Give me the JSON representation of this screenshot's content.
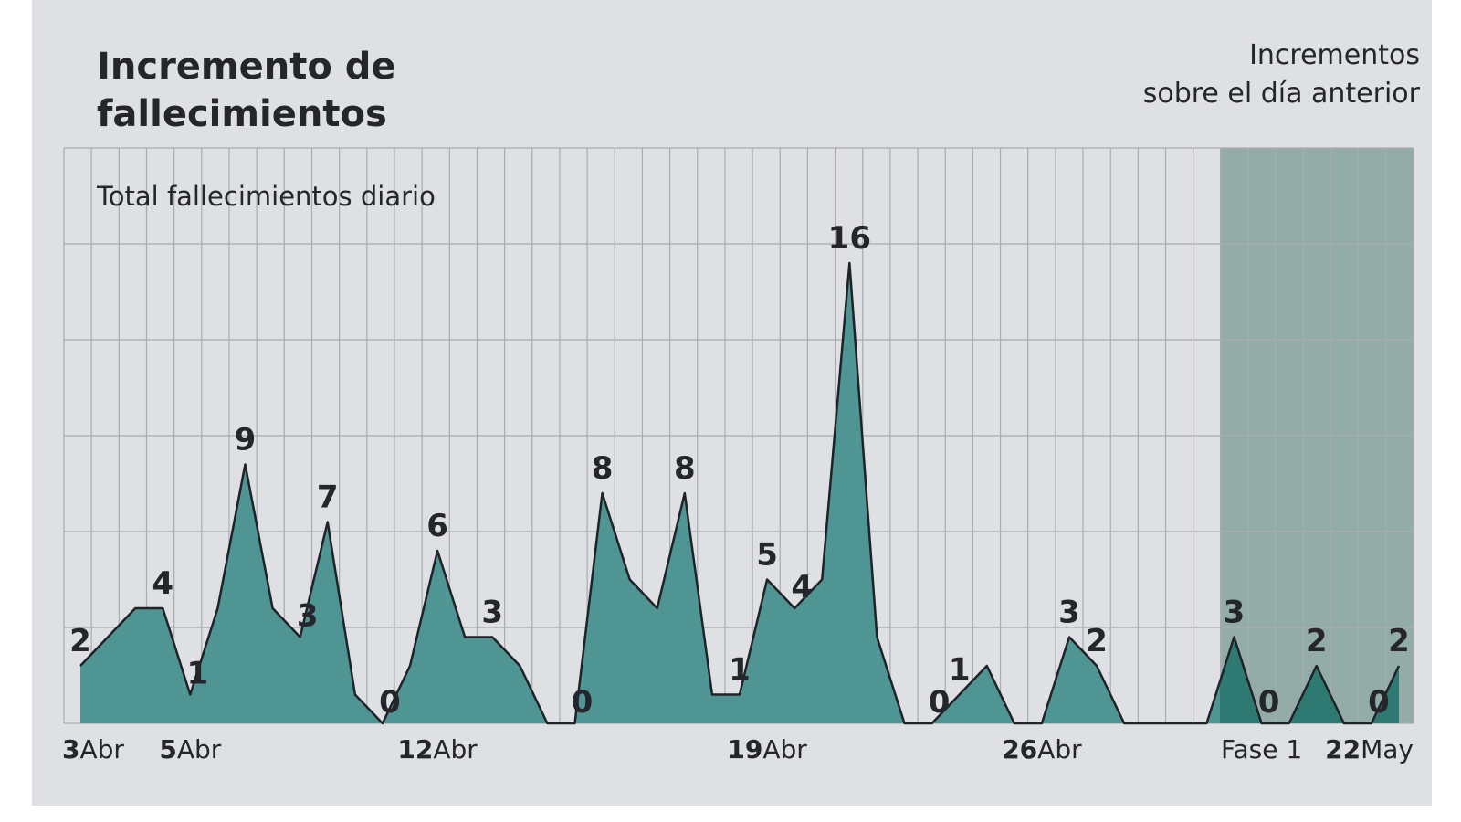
{
  "chart_data": {
    "type": "area",
    "title_lines": [
      "Incremento de",
      "fallecimientos"
    ],
    "note_lines": [
      "Incrementos",
      "sobre el día anterior"
    ],
    "subtitle": "Total fallecimientos diario",
    "categories": [
      "3Abr",
      null,
      null,
      null,
      "5Abr",
      null,
      null,
      null,
      null,
      null,
      null,
      null,
      null,
      "12Abr",
      null,
      null,
      null,
      null,
      null,
      null,
      null,
      null,
      null,
      null,
      null,
      "19Abr",
      null,
      null,
      null,
      null,
      null,
      null,
      null,
      null,
      null,
      "26Abr",
      null,
      null,
      null,
      null,
      null,
      null,
      null,
      "Fase 1",
      null,
      null,
      null,
      null,
      "22May"
    ],
    "values": [
      2,
      3,
      4,
      4,
      1,
      4,
      9,
      4,
      3,
      7,
      1,
      0,
      2,
      6,
      3,
      3,
      2,
      0,
      0,
      8,
      5,
      4,
      8,
      1,
      1,
      5,
      4,
      5,
      16,
      3,
      0,
      0,
      1,
      2,
      0,
      0,
      3,
      2,
      0,
      0,
      0,
      0,
      3,
      0,
      0,
      2,
      0,
      0,
      2
    ],
    "value_labels": [
      "2",
      null,
      null,
      "4",
      "1",
      null,
      "9",
      null,
      "3",
      "7",
      null,
      "0",
      null,
      "6",
      null,
      "3",
      null,
      null,
      "0",
      "8",
      null,
      null,
      "8",
      null,
      "1",
      "5",
      "4",
      null,
      "16",
      null,
      null,
      "0",
      "1",
      null,
      null,
      null,
      "3",
      "2",
      null,
      null,
      null,
      null,
      "3",
      "0",
      null,
      "2",
      null,
      "0",
      "2"
    ],
    "color": "#4f9593",
    "line_color": "#1e2328",
    "highlight_color": "#2e7a73",
    "ylim": [
      0,
      20
    ],
    "grid": true
  }
}
